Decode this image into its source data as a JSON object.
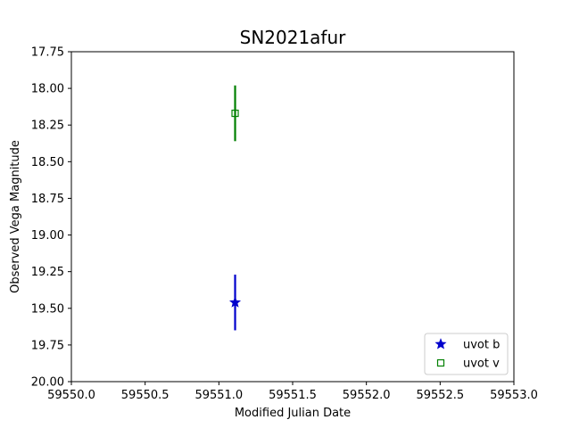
{
  "chart_data": {
    "type": "scatter",
    "title": "SN2021afur",
    "xlabel": "Modified Julian Date",
    "ylabel": "Observed Vega Magnitude",
    "xlim": [
      59550.0,
      59553.0
    ],
    "ylim": [
      17.75,
      20.0
    ],
    "y_inverted": true,
    "x_ticks": [
      59550.0,
      59550.5,
      59551.0,
      59551.5,
      59552.0,
      59552.5,
      59553.0
    ],
    "x_tick_labels": [
      "59550.0",
      "59550.5",
      "59551.0",
      "59551.5",
      "59552.0",
      "59552.5",
      "59553.0"
    ],
    "y_ticks": [
      17.75,
      18.0,
      18.25,
      18.5,
      18.75,
      19.0,
      19.25,
      19.5,
      19.75,
      20.0
    ],
    "y_tick_labels": [
      "17.75",
      "18.00",
      "18.25",
      "18.50",
      "18.75",
      "19.00",
      "19.25",
      "19.50",
      "19.75",
      "20.00"
    ],
    "grid": false,
    "legend_position": "bottom-right",
    "series": [
      {
        "name": "uvot b",
        "marker": "star",
        "color": "#0000cc",
        "points": [
          {
            "x": 59551.11,
            "y": 19.46,
            "err": 0.19
          }
        ]
      },
      {
        "name": "uvot v",
        "marker": "square",
        "color": "#008000",
        "points": [
          {
            "x": 59551.11,
            "y": 18.17,
            "err": 0.19
          }
        ]
      }
    ]
  }
}
